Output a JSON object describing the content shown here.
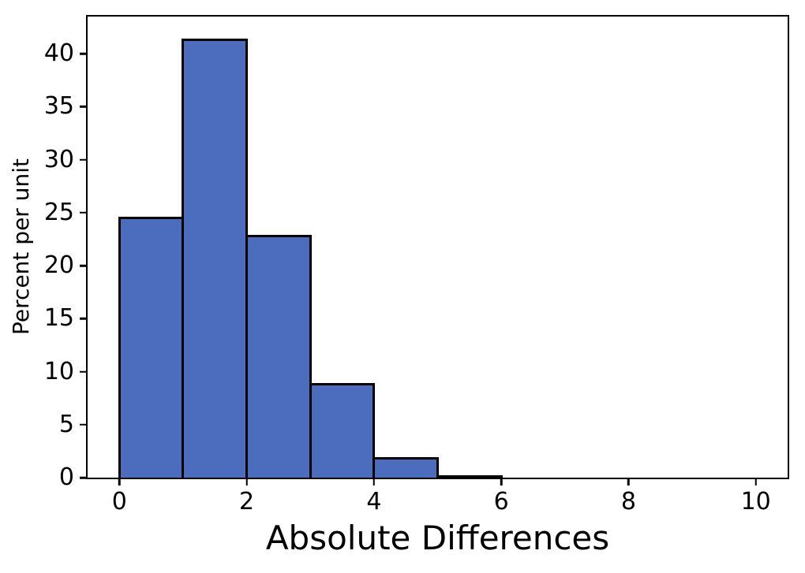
{
  "chart_data": {
    "type": "bar",
    "subtype": "histogram",
    "title": "",
    "xlabel": "Absolute Differences",
    "ylabel": "Percent per unit",
    "bin_edges": [
      0,
      1,
      2,
      3,
      4,
      5,
      6
    ],
    "values": [
      24.6,
      41.4,
      22.9,
      8.9,
      1.9,
      0.2
    ],
    "xticks": [
      0,
      2,
      4,
      6,
      8,
      10
    ],
    "yticks": [
      0,
      5,
      10,
      15,
      20,
      25,
      30,
      35,
      40
    ],
    "xlim": [
      -0.5,
      10.5
    ],
    "ylim": [
      0,
      43.5
    ],
    "grid": false,
    "legend": false,
    "bar_color": "#4c6dbe",
    "edge_color": "#000000",
    "axis_color": "#000000",
    "background_color": "#ffffff"
  }
}
